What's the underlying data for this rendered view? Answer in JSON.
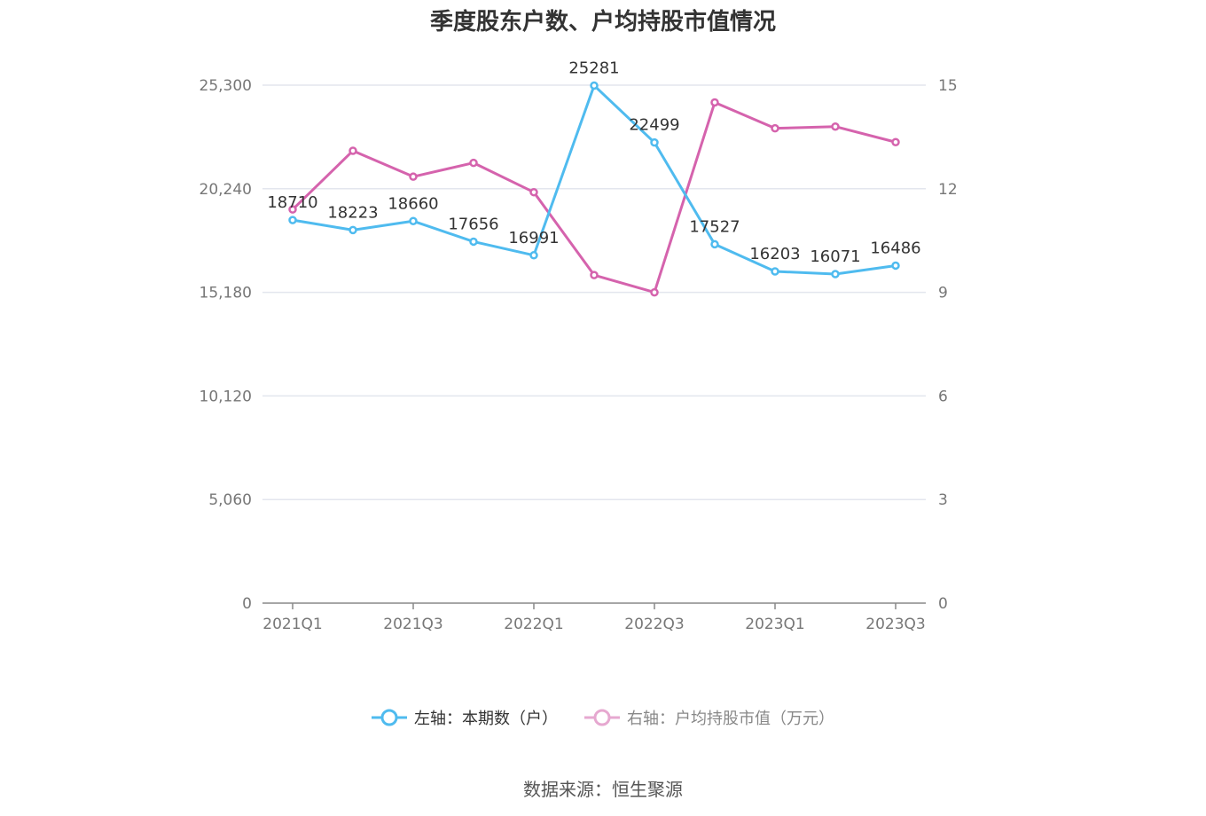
{
  "source_text": "数据来源：恒生聚源",
  "chart_data": {
    "type": "line",
    "title": "季度股东户数、户均持股市值情况",
    "x": [
      "2021Q1",
      "2021Q2",
      "2021Q3",
      "2021Q4",
      "2022Q1",
      "2022Q2",
      "2022Q3",
      "2022Q4",
      "2023Q1",
      "2023Q2",
      "2023Q3"
    ],
    "x_tick_labels": [
      "2021Q1",
      "2021Q3",
      "2022Q1",
      "2022Q3",
      "2023Q1",
      "2023Q3"
    ],
    "left_axis": {
      "ylim": [
        0,
        25300
      ],
      "ticks": [
        "0",
        "5,060",
        "10,120",
        "15,180",
        "20,240",
        "25,300"
      ]
    },
    "right_axis": {
      "ylim": [
        0,
        15
      ],
      "ticks": [
        "0",
        "3",
        "6",
        "9",
        "12",
        "15"
      ]
    },
    "series": [
      {
        "name": "左轴：本期数（户）",
        "axis": "left",
        "color": "#4fbbef",
        "values": [
          18710,
          18223,
          18660,
          17656,
          16991,
          25281,
          22499,
          17527,
          16203,
          16071,
          16486
        ],
        "labels": [
          "18710",
          "18223",
          "18660",
          "17656",
          "16991",
          "25281",
          "22499",
          "17527",
          "16203",
          "16071",
          "16486"
        ]
      },
      {
        "name": "右轴：户均持股市值（万元）",
        "axis": "right",
        "color": "#d563ad",
        "values": [
          11.4,
          13.1,
          12.35,
          12.75,
          11.9,
          9.5,
          9.0,
          14.5,
          13.75,
          13.8,
          13.35
        ]
      }
    ],
    "grid": true,
    "legend_position": "bottom"
  }
}
